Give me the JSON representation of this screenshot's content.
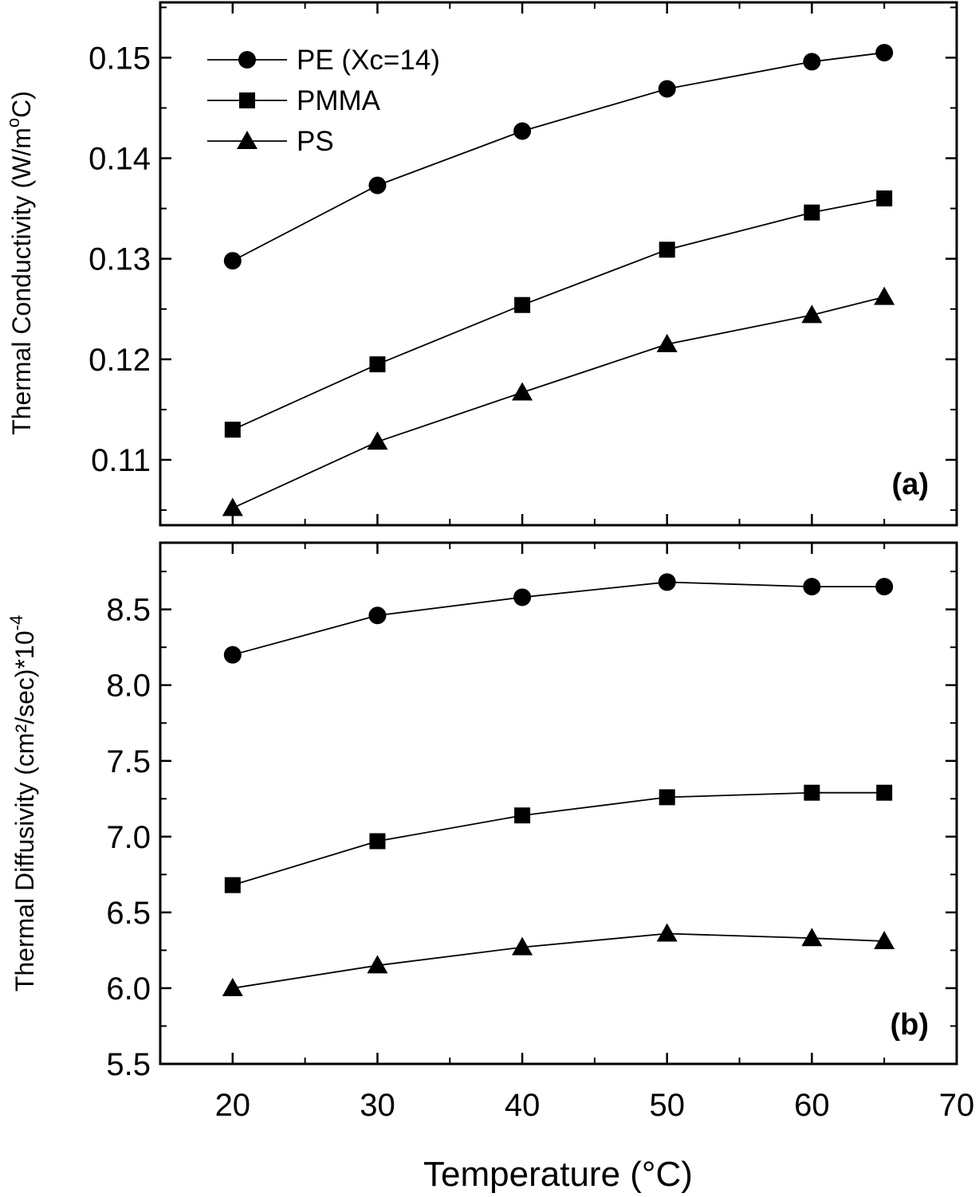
{
  "chart_data": [
    {
      "type": "line",
      "panel_label": "(a)",
      "ylabel": "Thermal Conductivity (W/m°C)",
      "ylabel_parts": {
        "main": "Thermal Conductivity (W/m",
        "sup": "o",
        "tail": "C)"
      },
      "ylim": [
        0.1035,
        0.1555
      ],
      "yticks": [
        0.11,
        0.12,
        0.13,
        0.14,
        0.15
      ],
      "ytick_labels": [
        "0.11",
        "0.12",
        "0.13",
        "0.14",
        "0.15"
      ],
      "x": [
        20,
        30,
        40,
        50,
        60,
        65
      ],
      "series": [
        {
          "name": "PE (Xc=14)",
          "marker": "circle",
          "values": [
            0.1298,
            0.1373,
            0.1427,
            0.1469,
            0.1496,
            0.1505
          ]
        },
        {
          "name": "PMMA",
          "marker": "square",
          "values": [
            0.113,
            0.1195,
            0.1254,
            0.1309,
            0.1346,
            0.136
          ]
        },
        {
          "name": "PS",
          "marker": "triangle",
          "values": [
            0.1052,
            0.1118,
            0.1167,
            0.1215,
            0.1244,
            0.1262
          ]
        }
      ],
      "legend": "top-left"
    },
    {
      "type": "line",
      "panel_label": "(b)",
      "ylabel": "Thermal Diffusivity (cm²/sec)*10⁻⁴",
      "ylabel_parts": {
        "main": "Thermal Diffusivity (cm²/sec)*10",
        "sup": "-4"
      },
      "ylim": [
        5.5,
        8.94
      ],
      "yticks": [
        5.5,
        6.0,
        6.5,
        7.0,
        7.5,
        8.0,
        8.5
      ],
      "ytick_labels": [
        "5.5",
        "6.0",
        "6.5",
        "7.0",
        "7.5",
        "8.0",
        "8.5"
      ],
      "x": [
        20,
        30,
        40,
        50,
        60,
        65
      ],
      "series": [
        {
          "name": "PE (Xc=14)",
          "marker": "circle",
          "values": [
            8.2,
            8.46,
            8.58,
            8.68,
            8.65,
            8.65
          ]
        },
        {
          "name": "PMMA",
          "marker": "square",
          "values": [
            6.68,
            6.97,
            7.14,
            7.26,
            7.29,
            7.29
          ]
        },
        {
          "name": "PS",
          "marker": "triangle",
          "values": [
            6.0,
            6.15,
            6.27,
            6.36,
            6.33,
            6.31
          ]
        }
      ]
    }
  ],
  "xaxis": {
    "label": "Temperature (°C)",
    "xlim": [
      15,
      70
    ],
    "ticks": [
      20,
      30,
      40,
      50,
      60,
      70
    ],
    "tick_labels": [
      "20",
      "30",
      "40",
      "50",
      "60",
      "70"
    ]
  },
  "colors": {
    "line": "#000000",
    "marker": "#000000",
    "background": "#ffffff"
  }
}
